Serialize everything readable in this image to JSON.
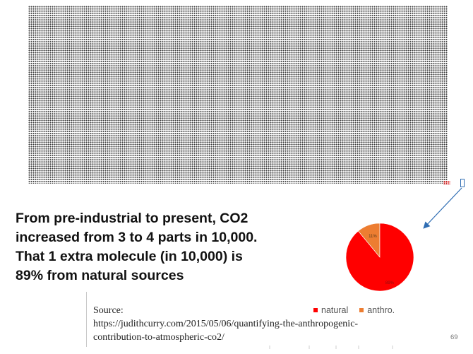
{
  "main_text": {
    "lines": [
      "From pre-industrial to present, CO2",
      "increased from 3 to 4 parts in 10,000.",
      "That 1 extra molecule (in 10,000) is",
      "89% from natural sources"
    ]
  },
  "chart_data": {
    "type": "pie",
    "slices": [
      {
        "label": "natural",
        "value": 89,
        "display": "89%",
        "color": "#ff0000"
      },
      {
        "label": "anthro.",
        "value": 11,
        "display": "11%",
        "color": "#ed7d31"
      }
    ],
    "legend": [
      "natural",
      "anthro."
    ],
    "legend_position": "bottom"
  },
  "source": {
    "label": "Source:",
    "url_line1": "https://judithcurry.com/2015/05/06/quantifying-the-anthropogenic-",
    "url_line2": "contribution-to-atmospheric-co2/"
  },
  "page_number": "69",
  "colors": {
    "dots": "#3b3b3b",
    "highlight_dots": "#dd1111",
    "arrow": "#2f6db3"
  }
}
